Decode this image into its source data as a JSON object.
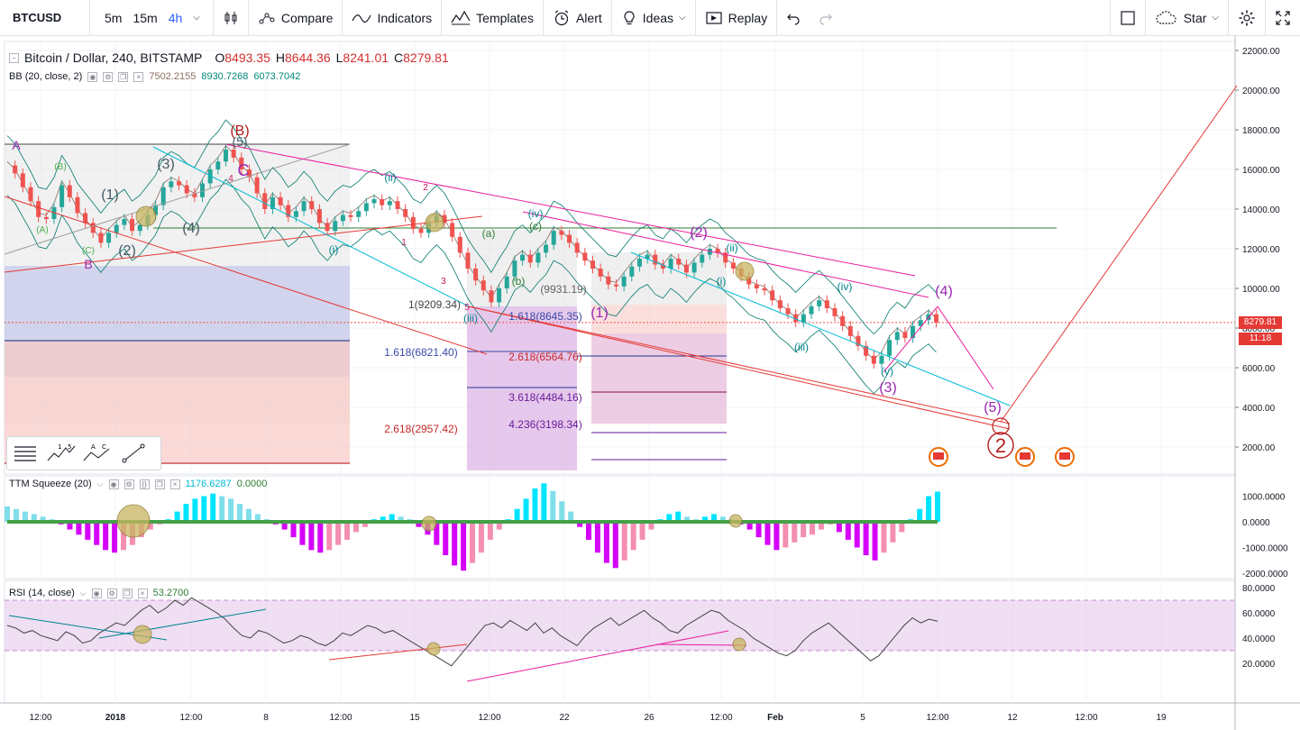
{
  "toolbar": {
    "symbol": "BTCUSD",
    "intervals": [
      "5m",
      "15m",
      "4h"
    ],
    "active_interval": "4h",
    "compare": "Compare",
    "indicators": "Indicators",
    "templates": "Templates",
    "alert": "Alert",
    "ideas": "Ideas",
    "replay": "Replay",
    "star": "Star"
  },
  "main_legend": {
    "title": "Bitcoin / Dollar, 240, BITSTAMP",
    "o_label": "O",
    "o": "8493.35",
    "h_label": "H",
    "h": "8644.36",
    "l_label": "L",
    "l": "8241.01",
    "c_label": "C",
    "c": "8279.81"
  },
  "bb_legend": {
    "name": "BB (20, close, 2)",
    "mid": "7502.2155",
    "upper": "8930.7268",
    "lower": "6073.7042"
  },
  "ttm_legend": {
    "name": "TTM Squeeze (20)",
    "v1": "1176.6287",
    "v2": "0.0000"
  },
  "rsi_legend": {
    "name": "RSI (14, close)",
    "value": "53.2700"
  },
  "last_price": {
    "value": "8279.81",
    "countdown": "11:18"
  },
  "colors": {
    "up": "#26a69a",
    "down": "#ef5350",
    "pink": "#e91e9c",
    "cyan": "#00bcd4",
    "red_line": "#e53935"
  },
  "chart_data": [
    {
      "type": "line",
      "panel": "price",
      "y_axis_ticks": [
        2000,
        4000,
        6000,
        8000,
        10000,
        12000,
        14000,
        16000,
        18000,
        20000,
        22000
      ],
      "y_axis_labels": [
        "2000.00",
        "4000.00",
        "6000.00",
        "8000.00",
        "10000.00",
        "12000.00",
        "14000.00",
        "16000.00",
        "18000.00",
        "20000.00",
        "22000.00"
      ],
      "ylim": [
        700,
        22900
      ],
      "x_axis_labels": [
        "12:00",
        "2018",
        "12:00",
        "8",
        "12:00",
        "15",
        "12:00",
        "22",
        "26",
        "12:00",
        "Feb",
        "5",
        "12:00",
        "12",
        "12:00",
        "19"
      ],
      "close_path": [
        [
          0,
          16200
        ],
        [
          4,
          15800
        ],
        [
          8,
          15100
        ],
        [
          12,
          14400
        ],
        [
          16,
          13600
        ],
        [
          20,
          13500
        ],
        [
          24,
          14100
        ],
        [
          28,
          15200
        ],
        [
          32,
          14600
        ],
        [
          36,
          13800
        ],
        [
          40,
          13300
        ],
        [
          44,
          12800
        ],
        [
          48,
          12300
        ],
        [
          52,
          12800
        ],
        [
          56,
          13200
        ],
        [
          60,
          13500
        ],
        [
          64,
          12900
        ],
        [
          68,
          13200
        ],
        [
          72,
          13700
        ],
        [
          76,
          14200
        ],
        [
          80,
          15100
        ],
        [
          84,
          15400
        ],
        [
          88,
          15200
        ],
        [
          92,
          14800
        ],
        [
          96,
          14600
        ],
        [
          100,
          15300
        ],
        [
          104,
          16000
        ],
        [
          108,
          16400
        ],
        [
          112,
          17000
        ],
        [
          116,
          16600
        ],
        [
          120,
          16000
        ],
        [
          124,
          15600
        ],
        [
          128,
          14800
        ],
        [
          132,
          14000
        ],
        [
          136,
          14600
        ],
        [
          140,
          14200
        ],
        [
          144,
          13600
        ],
        [
          148,
          13900
        ],
        [
          152,
          14400
        ],
        [
          156,
          14000
        ],
        [
          160,
          13300
        ],
        [
          164,
          12900
        ],
        [
          168,
          13400
        ],
        [
          172,
          13700
        ],
        [
          176,
          13600
        ],
        [
          180,
          13900
        ],
        [
          184,
          14300
        ],
        [
          188,
          14500
        ],
        [
          192,
          14200
        ],
        [
          196,
          14400
        ],
        [
          200,
          14000
        ],
        [
          204,
          13600
        ],
        [
          208,
          13000
        ],
        [
          212,
          12800
        ],
        [
          216,
          13300
        ],
        [
          220,
          13700
        ],
        [
          224,
          13300
        ],
        [
          228,
          12600
        ],
        [
          232,
          11800
        ],
        [
          236,
          11000
        ],
        [
          240,
          10400
        ],
        [
          244,
          9900
        ],
        [
          248,
          9300
        ],
        [
          252,
          10000
        ],
        [
          256,
          10600
        ],
        [
          260,
          11400
        ],
        [
          264,
          11700
        ],
        [
          268,
          11300
        ],
        [
          272,
          11800
        ],
        [
          276,
          12200
        ],
        [
          280,
          12900
        ],
        [
          284,
          12700
        ],
        [
          288,
          12300
        ],
        [
          292,
          11800
        ],
        [
          296,
          11400
        ],
        [
          300,
          11000
        ],
        [
          304,
          10600
        ],
        [
          308,
          10200
        ],
        [
          312,
          10100
        ],
        [
          316,
          10600
        ],
        [
          320,
          11100
        ],
        [
          324,
          11500
        ],
        [
          328,
          11700
        ],
        [
          332,
          11200
        ],
        [
          336,
          11000
        ],
        [
          340,
          11500
        ],
        [
          344,
          11200
        ],
        [
          348,
          10800
        ],
        [
          352,
          11300
        ],
        [
          356,
          11700
        ],
        [
          360,
          12000
        ],
        [
          364,
          11800
        ],
        [
          368,
          11300
        ],
        [
          372,
          11000
        ],
        [
          376,
          10600
        ],
        [
          380,
          10200
        ],
        [
          384,
          10000
        ],
        [
          388,
          9900
        ],
        [
          392,
          9400
        ],
        [
          396,
          9000
        ],
        [
          400,
          8700
        ],
        [
          404,
          8300
        ],
        [
          408,
          8700
        ],
        [
          412,
          9100
        ],
        [
          416,
          9400
        ],
        [
          420,
          9000
        ],
        [
          424,
          8600
        ],
        [
          428,
          8100
        ],
        [
          432,
          7600
        ],
        [
          436,
          7100
        ],
        [
          440,
          6600
        ],
        [
          444,
          6200
        ],
        [
          448,
          6600
        ],
        [
          452,
          7400
        ],
        [
          456,
          7800
        ],
        [
          460,
          7500
        ],
        [
          464,
          8100
        ],
        [
          468,
          8400
        ],
        [
          472,
          8700
        ],
        [
          476,
          8280
        ]
      ],
      "fib_labels": [
        "1(9209.34)",
        "1.618(8645.35)",
        "1.618(6821.40)",
        "2.618(6564.76)",
        "3.618(4484.16)",
        "2.618(2957.42)",
        "4.236(3198.34)",
        "(9931.19)"
      ],
      "wave_labels": [
        "A",
        "B",
        "(B)",
        "C",
        "(A)",
        "(B)",
        "(C)",
        "(1)",
        "(2)",
        "(3)",
        "(4)",
        "(5)",
        "(i)",
        "(ii)",
        "(iii)",
        "(iv)",
        "(v)",
        "(a)",
        "(b)",
        "(c)",
        "1",
        "2",
        "3",
        "4",
        "5",
        "(1)",
        "(2)",
        "(3)",
        "(4)",
        "(5)",
        "2"
      ]
    },
    {
      "type": "bar",
      "panel": "ttm_squeeze",
      "y_axis_labels": [
        "1000.0000",
        "0.0000",
        "-1000.0000",
        "-2000.0000"
      ],
      "ylim": [
        -2200,
        1400
      ],
      "values": [
        600,
        500,
        400,
        300,
        200,
        100,
        -100,
        -300,
        -500,
        -700,
        -900,
        -1100,
        -1200,
        -1100,
        -900,
        -600,
        -300,
        -100,
        100,
        400,
        700,
        900,
        1000,
        1100,
        1000,
        900,
        700,
        500,
        300,
        100,
        -100,
        -300,
        -600,
        -900,
        -1100,
        -1200,
        -1100,
        -900,
        -700,
        -400,
        -200,
        100,
        200,
        300,
        200,
        100,
        -200,
        -500,
        -900,
        -1300,
        -1700,
        -1900,
        -1600,
        -1200,
        -700,
        -300,
        100,
        500,
        900,
        1300,
        1500,
        1200,
        800,
        400,
        -200,
        -700,
        -1200,
        -1600,
        -1800,
        -1500,
        -1100,
        -700,
        -300,
        100,
        300,
        400,
        200,
        100,
        200,
        300,
        200,
        100,
        -100,
        -300,
        -600,
        -900,
        -1100,
        -1000,
        -800,
        -600,
        -500,
        -300,
        -100,
        -400,
        -700,
        -1000,
        -1300,
        -1500,
        -1200,
        -800,
        -400,
        100,
        500,
        1000,
        1176
      ]
    },
    {
      "type": "line",
      "panel": "rsi",
      "y_axis_labels": [
        "80.0000",
        "60.0000",
        "40.0000",
        "20.0000"
      ],
      "ylim": [
        9,
        82
      ],
      "bands": [
        30,
        70
      ],
      "values": [
        50,
        48,
        44,
        46,
        42,
        40,
        38,
        45,
        42,
        36,
        38,
        44,
        48,
        52,
        50,
        56,
        62,
        66,
        60,
        64,
        70,
        66,
        72,
        68,
        64,
        60,
        55,
        48,
        42,
        40,
        46,
        44,
        40,
        36,
        38,
        42,
        40,
        36,
        34,
        38,
        44,
        42,
        46,
        50,
        48,
        44,
        46,
        42,
        38,
        34,
        30,
        26,
        22,
        18,
        26,
        34,
        42,
        50,
        52,
        48,
        54,
        50,
        46,
        52,
        44,
        48,
        42,
        38,
        34,
        42,
        48,
        52,
        56,
        50,
        54,
        58,
        62,
        56,
        52,
        46,
        44,
        50,
        54,
        58,
        62,
        60,
        54,
        50,
        46,
        40,
        36,
        32,
        28,
        26,
        30,
        38,
        44,
        48,
        52,
        46,
        40,
        34,
        28,
        22,
        26,
        34,
        42,
        50,
        56,
        52,
        55,
        53.27
      ]
    }
  ]
}
